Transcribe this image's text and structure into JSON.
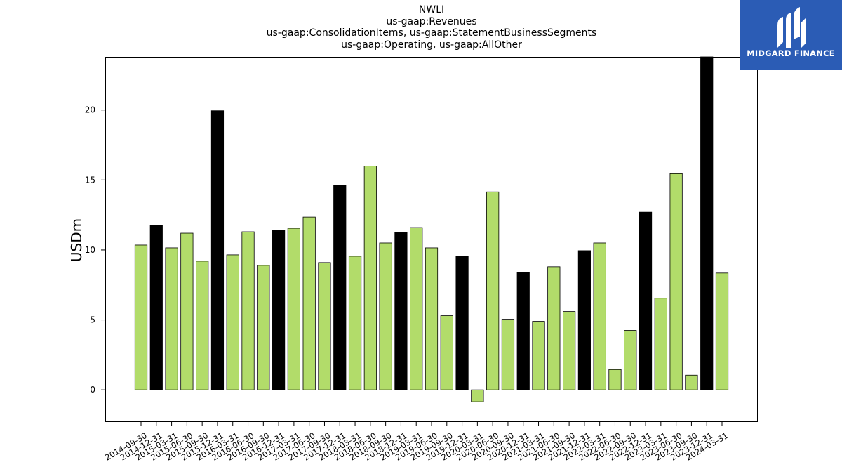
{
  "title_lines": [
    "NWLI",
    "us-gaap:Revenues",
    "us-gaap:ConsolidationItems, us-gaap:StatementBusinessSegments",
    "us-gaap:Operating, us-gaap:AllOther"
  ],
  "logo": {
    "text": "MIDGARD FINANCE",
    "background": "#2b5cb5"
  },
  "chart_data": {
    "type": "bar",
    "ylabel": "USDm",
    "xlabel": "",
    "ylim": [
      -2.3,
      23.8
    ],
    "yticks": [
      0,
      5,
      10,
      15,
      20
    ],
    "colors": {
      "quarter": "#b2dc6a",
      "year_end": "#000000"
    },
    "categories": [
      "2014-09-30",
      "2014-12-31",
      "2015-03-31",
      "2015-06-30",
      "2015-09-30",
      "2015-12-31",
      "2016-03-31",
      "2016-06-30",
      "2016-09-30",
      "2016-12-31",
      "2017-03-31",
      "2017-06-30",
      "2017-09-30",
      "2017-12-31",
      "2018-03-31",
      "2018-06-30",
      "2018-09-30",
      "2018-12-31",
      "2019-03-31",
      "2019-06-30",
      "2019-09-30",
      "2019-12-31",
      "2020-03-31",
      "2020-06-30",
      "2020-09-30",
      "2020-12-31",
      "2021-03-31",
      "2021-06-30",
      "2021-09-30",
      "2021-12-31",
      "2022-03-31",
      "2022-06-30",
      "2022-09-30",
      "2022-12-31",
      "2023-03-31",
      "2023-06-30",
      "2023-09-30",
      "2023-12-31",
      "2024-03-31"
    ],
    "values": [
      10.35,
      11.75,
      10.15,
      11.2,
      9.2,
      19.95,
      9.65,
      11.3,
      8.9,
      11.4,
      11.55,
      12.35,
      9.1,
      14.6,
      9.55,
      16.0,
      10.5,
      11.25,
      11.6,
      10.15,
      5.3,
      9.55,
      -0.85,
      14.15,
      5.05,
      8.4,
      4.9,
      8.8,
      5.6,
      9.95,
      10.5,
      1.45,
      4.25,
      12.7,
      6.55,
      15.45,
      1.05,
      23.8,
      8.35
    ]
  }
}
